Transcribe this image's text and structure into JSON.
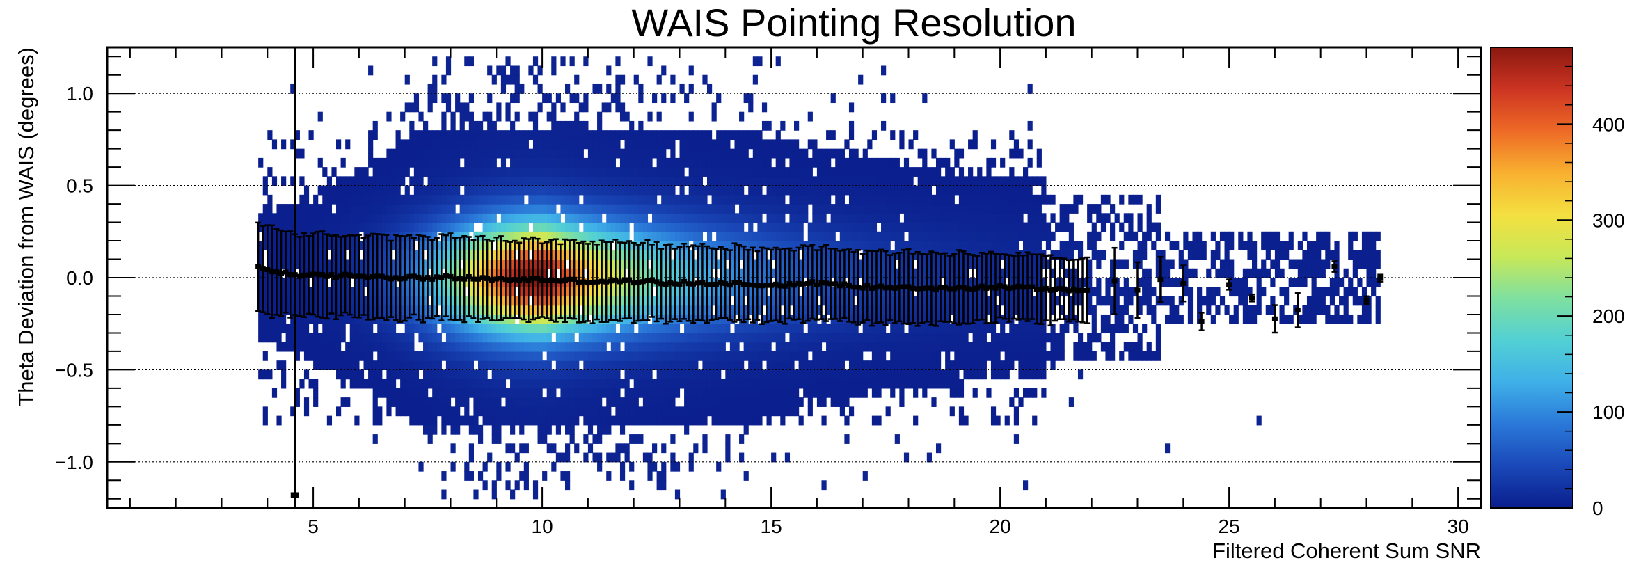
{
  "chart_data": {
    "type": "heatmap",
    "title": "WAIS Pointing Resolution",
    "xlabel": "Filtered Coherent Sum SNR",
    "ylabel": "Theta Deviation from WAIS (degrees)",
    "xlim": [
      0.5,
      30.5
    ],
    "ylim": [
      -1.25,
      1.25
    ],
    "xticks": [
      5,
      10,
      15,
      20,
      25,
      30
    ],
    "yticks": [
      1.0,
      0.5,
      0.0,
      -0.5,
      -1.0
    ],
    "ytick_labels": [
      "1.0",
      "0.5",
      "0.0",
      "−0.5",
      "−1.0"
    ],
    "grid": true,
    "colorbar": {
      "min": 0,
      "max": 480,
      "ticks": [
        0,
        100,
        200,
        300,
        400
      ],
      "colors": [
        "#0a1e8c",
        "#1a48b8",
        "#2a78d8",
        "#3fb0e8",
        "#52d0d4",
        "#7ee0a0",
        "#c8e858",
        "#f4e040",
        "#f8b030",
        "#ee6a26",
        "#cc3422",
        "#8a1810"
      ]
    },
    "density": {
      "x_range": [
        3.8,
        28.3
      ],
      "peak_x": 10,
      "peak_count": 480,
      "core_sigma_y": 0.2,
      "halo_y_extent": 1.2
    },
    "profile": {
      "x": [
        3.8,
        4.5,
        5.0,
        6.0,
        7.0,
        8.0,
        9.0,
        10.0,
        11.0,
        12.0,
        13.0,
        14.0,
        15.0,
        16.0,
        17.0,
        18.0,
        19.0,
        20.0,
        21.0,
        22.0,
        22.5,
        23.0,
        23.5,
        24.0,
        24.4,
        25.0,
        25.5,
        26.0,
        26.5,
        27.3,
        28.0,
        28.3
      ],
      "y": [
        0.05,
        0.02,
        0.01,
        0.01,
        0.0,
        0.0,
        -0.01,
        -0.01,
        -0.02,
        -0.02,
        -0.03,
        -0.03,
        -0.04,
        -0.03,
        -0.05,
        -0.05,
        -0.06,
        -0.05,
        -0.06,
        -0.07,
        -0.02,
        -0.06,
        0.0,
        -0.03,
        -0.24,
        -0.04,
        -0.12,
        -0.22,
        -0.17,
        0.07,
        -0.13,
        -0.01
      ],
      "err": [
        0.24,
        0.23,
        0.22,
        0.22,
        0.22,
        0.22,
        0.22,
        0.21,
        0.21,
        0.21,
        0.2,
        0.2,
        0.2,
        0.2,
        0.19,
        0.19,
        0.19,
        0.18,
        0.18,
        0.17,
        0.17,
        0.15,
        0.12,
        0.1,
        0.05,
        0.03,
        0.02,
        0.08,
        0.1,
        0.03,
        0.02,
        0.02
      ]
    }
  }
}
